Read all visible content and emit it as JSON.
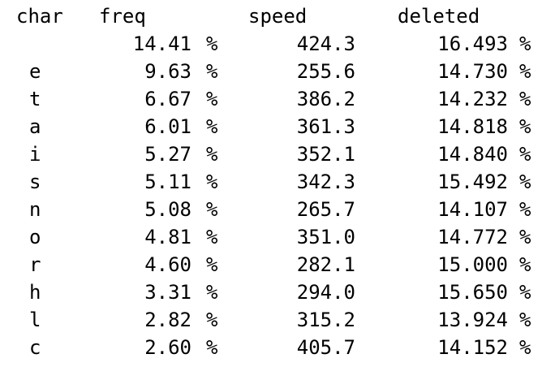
{
  "header": {
    "char": "char",
    "freq": "freq",
    "speed": "speed",
    "deleted": "deleted"
  },
  "rows": [
    {
      "char": "",
      "freq": "14.41",
      "freq_unit": "%",
      "speed": "424.3",
      "deleted": "16.493",
      "deleted_unit": "%"
    },
    {
      "char": "e",
      "freq": "9.63",
      "freq_unit": "%",
      "speed": "255.6",
      "deleted": "14.730",
      "deleted_unit": "%"
    },
    {
      "char": "t",
      "freq": "6.67",
      "freq_unit": "%",
      "speed": "386.2",
      "deleted": "14.232",
      "deleted_unit": "%"
    },
    {
      "char": "a",
      "freq": "6.01",
      "freq_unit": "%",
      "speed": "361.3",
      "deleted": "14.818",
      "deleted_unit": "%"
    },
    {
      "char": "i",
      "freq": "5.27",
      "freq_unit": "%",
      "speed": "352.1",
      "deleted": "14.840",
      "deleted_unit": "%"
    },
    {
      "char": "s",
      "freq": "5.11",
      "freq_unit": "%",
      "speed": "342.3",
      "deleted": "15.492",
      "deleted_unit": "%"
    },
    {
      "char": "n",
      "freq": "5.08",
      "freq_unit": "%",
      "speed": "265.7",
      "deleted": "14.107",
      "deleted_unit": "%"
    },
    {
      "char": "o",
      "freq": "4.81",
      "freq_unit": "%",
      "speed": "351.0",
      "deleted": "14.772",
      "deleted_unit": "%"
    },
    {
      "char": "r",
      "freq": "4.60",
      "freq_unit": "%",
      "speed": "282.1",
      "deleted": "15.000",
      "deleted_unit": "%"
    },
    {
      "char": "h",
      "freq": "3.31",
      "freq_unit": "%",
      "speed": "294.0",
      "deleted": "15.650",
      "deleted_unit": "%"
    },
    {
      "char": "l",
      "freq": "2.82",
      "freq_unit": "%",
      "speed": "315.2",
      "deleted": "13.924",
      "deleted_unit": "%"
    },
    {
      "char": "c",
      "freq": "2.60",
      "freq_unit": "%",
      "speed": "405.7",
      "deleted": "14.152",
      "deleted_unit": "%"
    }
  ]
}
